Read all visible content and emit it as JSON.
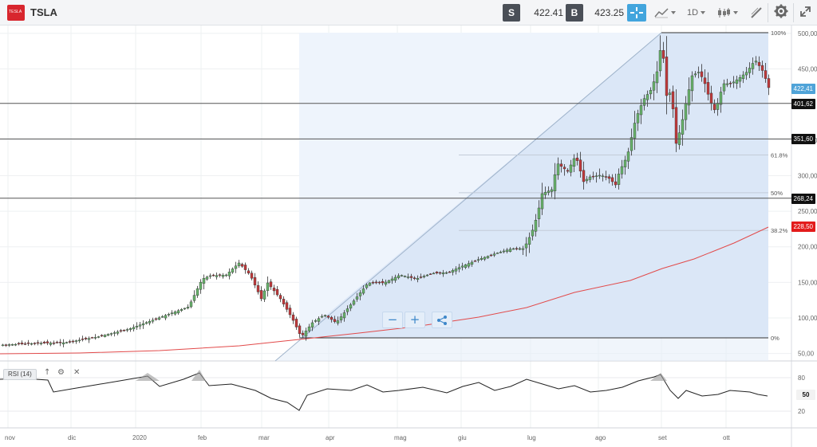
{
  "toolbar": {
    "logo_text": "TESLA",
    "symbol": "TSLA",
    "sell_label": "S",
    "sell_price": "422.41",
    "buy_label": "B",
    "buy_price": "423.25",
    "interval": "1D",
    "icons": [
      "crosshair-icon",
      "line-chart-icon",
      "candlestick-icon",
      "draw-tools-icon",
      "settings-icon",
      "expand-icon"
    ]
  },
  "price_axis": {
    "ticks": [
      {
        "value": 500,
        "label": "500,00"
      },
      {
        "value": 450,
        "label": "450,00"
      },
      {
        "value": 350,
        "label": "350,00"
      },
      {
        "value": 300,
        "label": "300,00"
      },
      {
        "value": 250,
        "label": "250,00"
      },
      {
        "value": 200,
        "label": "200,00"
      },
      {
        "value": 150,
        "label": "150,00"
      },
      {
        "value": 100,
        "label": "100,00"
      },
      {
        "value": 50,
        "label": "50,00"
      }
    ]
  },
  "time_axis": {
    "ticks": [
      "nov",
      "dic",
      "2020",
      "feb",
      "mar",
      "apr",
      "mag",
      "giu",
      "lug",
      "ago",
      "set",
      "ott"
    ]
  },
  "horizontal_lines": [
    {
      "value": 401.62,
      "label": "401,62",
      "color": "#000000"
    },
    {
      "value": 351.6,
      "label": "351,60",
      "color": "#000000"
    },
    {
      "value": 268.24,
      "label": "268,24",
      "color": "#000000"
    }
  ],
  "current_price_badge": {
    "value": 422.41,
    "label": "422,41",
    "color": "#4fa3d8"
  },
  "moving_average_badge": {
    "value": 228.5,
    "label": "228,50",
    "color": "#e31b1b"
  },
  "fibonacci": {
    "levels": [
      {
        "value": 501,
        "label": "100%"
      },
      {
        "value": 329,
        "label": "61.8%"
      },
      {
        "value": 276,
        "label": "50%"
      },
      {
        "value": 223,
        "label": "38.2%"
      },
      {
        "value": 72,
        "label": "0%"
      }
    ]
  },
  "zoom_controls": {
    "zoom_out": "−",
    "zoom_in": "+",
    "share": "share-icon"
  },
  "rsi_panel": {
    "label": "RSI (14)",
    "ticks": [
      {
        "value": 80,
        "label": "80"
      },
      {
        "value": 20,
        "label": "20"
      }
    ],
    "current_label": "50",
    "icons": [
      "arrow-up-icon",
      "gear-icon",
      "close-icon"
    ]
  },
  "chart_data": {
    "type": "candlestick",
    "title": "",
    "xlabel": "",
    "ylabel": "",
    "ylim": [
      40,
      530
    ],
    "x": [
      "nov",
      "dic",
      "2020",
      "feb",
      "mar",
      "apr",
      "mag",
      "giu",
      "lug",
      "ago",
      "set",
      "ott"
    ],
    "close_approx": [
      64,
      69,
      86,
      150,
      110,
      95,
      150,
      185,
      275,
      300,
      420,
      422
    ],
    "moving_average": [
      45,
      48,
      53,
      60,
      68,
      74,
      90,
      110,
      140,
      170,
      200,
      228.5
    ],
    "rsi": [
      55,
      60,
      65,
      75,
      30,
      45,
      55,
      50,
      70,
      60,
      80,
      50
    ]
  }
}
